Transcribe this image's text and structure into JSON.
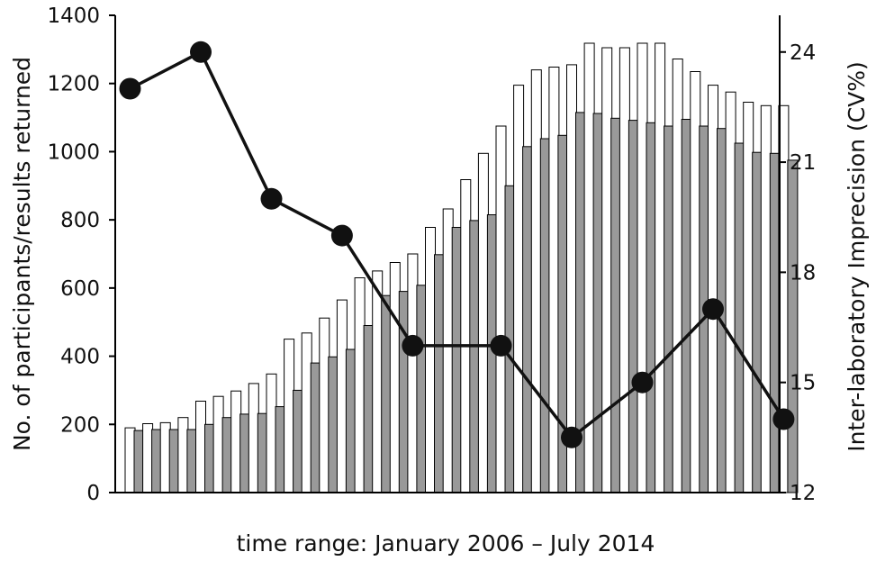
{
  "chart_data": {
    "type": "bar",
    "title": "",
    "xlabel": "time range: January 2006 – July 2014",
    "ylabel": "No. of participants/results returned",
    "y2label": "Inter-laboratory Imprecision (CV%)",
    "ylim": [
      0,
      1400
    ],
    "y2lim": [
      12,
      25
    ],
    "yticks": [
      0,
      200,
      400,
      600,
      800,
      1000,
      1200,
      1400
    ],
    "y2ticks": [
      12,
      15,
      18,
      21,
      24
    ],
    "grid": false,
    "legend": "none",
    "colors": {
      "results": "#ffffff",
      "participants": "#999999",
      "line": "#111111",
      "axis": "#000000"
    },
    "series": [
      {
        "key": "results",
        "type": "bar",
        "values": [
          190,
          202,
          205,
          220,
          268,
          282,
          298,
          320,
          348,
          450,
          468,
          512,
          565,
          630,
          650,
          675,
          700,
          778,
          832,
          918,
          995,
          1075,
          1195,
          1240,
          1248,
          1255,
          1318,
          1305,
          1305,
          1318,
          1318,
          1272,
          1235,
          1195,
          1175,
          1145,
          1135,
          1135
        ]
      },
      {
        "key": "participants",
        "type": "bar",
        "values": [
          182,
          185,
          185,
          185,
          200,
          220,
          230,
          232,
          252,
          300,
          380,
          398,
          420,
          490,
          578,
          590,
          608,
          698,
          778,
          798,
          815,
          900,
          1015,
          1038,
          1048,
          1115,
          1112,
          1098,
          1092,
          1085,
          1075,
          1095,
          1075,
          1068,
          1025,
          998,
          995,
          975
        ]
      },
      {
        "key": "cv",
        "type": "line",
        "axis": "right",
        "points": [
          {
            "i": 0,
            "y": 23.0
          },
          {
            "i": 4,
            "y": 24.0
          },
          {
            "i": 8,
            "y": 20.0
          },
          {
            "i": 12,
            "y": 19.0
          },
          {
            "i": 16,
            "y": 16.0
          },
          {
            "i": 21,
            "y": 16.0
          },
          {
            "i": 25,
            "y": 13.5
          },
          {
            "i": 29,
            "y": 15.0
          },
          {
            "i": 33,
            "y": 17.0
          },
          {
            "i": 37,
            "y": 14.0
          }
        ]
      }
    ]
  }
}
